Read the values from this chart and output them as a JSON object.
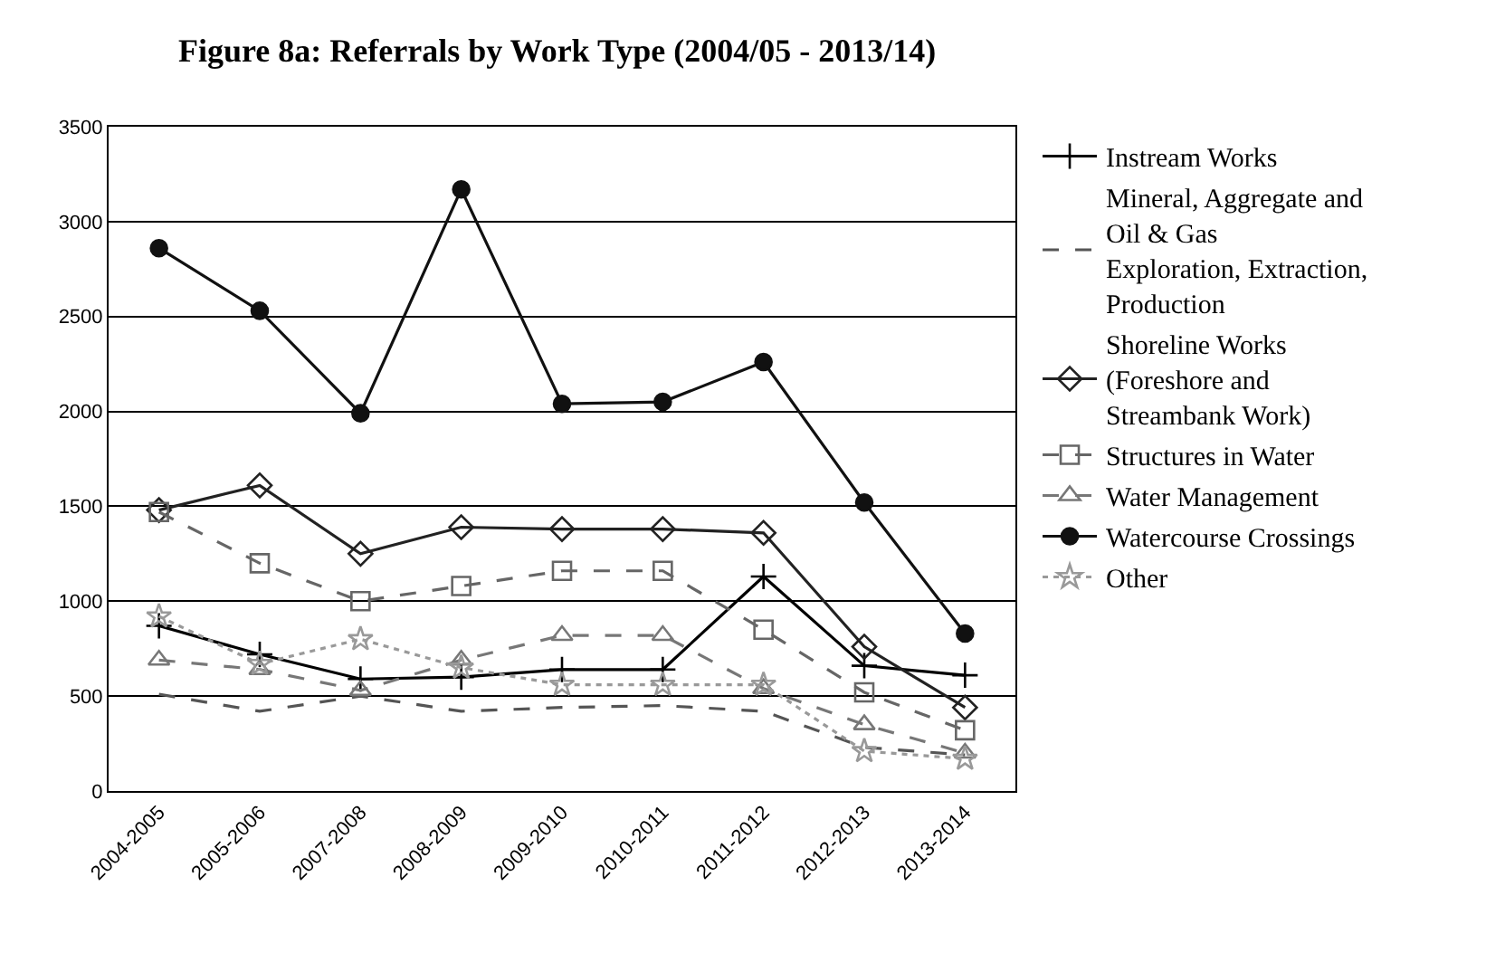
{
  "chart_data": {
    "type": "line",
    "title": "Figure 8a: Referrals by Work Type (2004/05 - 2013/14)",
    "categories": [
      "2004-2005",
      "2005-2006",
      "2007-2008",
      "2008-2009",
      "2009-2010",
      "2010-2011",
      "2011-2012",
      "2012-2013",
      "2013-2014"
    ],
    "ylim": [
      0,
      3500
    ],
    "yticks": [
      0,
      500,
      1000,
      1500,
      2000,
      2500,
      3000,
      3500
    ],
    "grid": "y",
    "legend": "right",
    "series": [
      {
        "name": "Instream Works",
        "color": "#000000",
        "marker": "cross",
        "line_style": "solid",
        "values": [
          870,
          720,
          590,
          600,
          640,
          640,
          1130,
          660,
          610
        ]
      },
      {
        "name": "Mineral, Aggregate and Oil & Gas Exploration, Extraction, Production",
        "color": "#555555",
        "marker": "none",
        "line_style": "dashed",
        "values": [
          510,
          420,
          500,
          420,
          440,
          450,
          420,
          230,
          190
        ]
      },
      {
        "name": "Shoreline Works (Foreshore and Streambank Work)",
        "color": "#222222",
        "marker": "diamond",
        "line_style": "solid",
        "values": [
          1480,
          1610,
          1250,
          1390,
          1380,
          1380,
          1360,
          760,
          440
        ]
      },
      {
        "name": "Structures in Water",
        "color": "#666666",
        "marker": "square",
        "line_style": "dashed",
        "values": [
          1470,
          1200,
          1000,
          1080,
          1160,
          1160,
          850,
          520,
          320
        ]
      },
      {
        "name": "Water Management",
        "color": "#777777",
        "marker": "triangle",
        "line_style": "dashed",
        "values": [
          690,
          640,
          530,
          690,
          820,
          820,
          540,
          350,
          200
        ]
      },
      {
        "name": "Watercourse Crossings",
        "color": "#111111",
        "marker": "circle",
        "line_style": "solid",
        "values": [
          2860,
          2530,
          1990,
          3170,
          2040,
          2050,
          2260,
          1520,
          830
        ]
      },
      {
        "name": "Other",
        "color": "#999999",
        "marker": "star",
        "line_style": "dotted",
        "values": [
          920,
          670,
          800,
          650,
          560,
          560,
          560,
          210,
          170
        ]
      }
    ]
  }
}
